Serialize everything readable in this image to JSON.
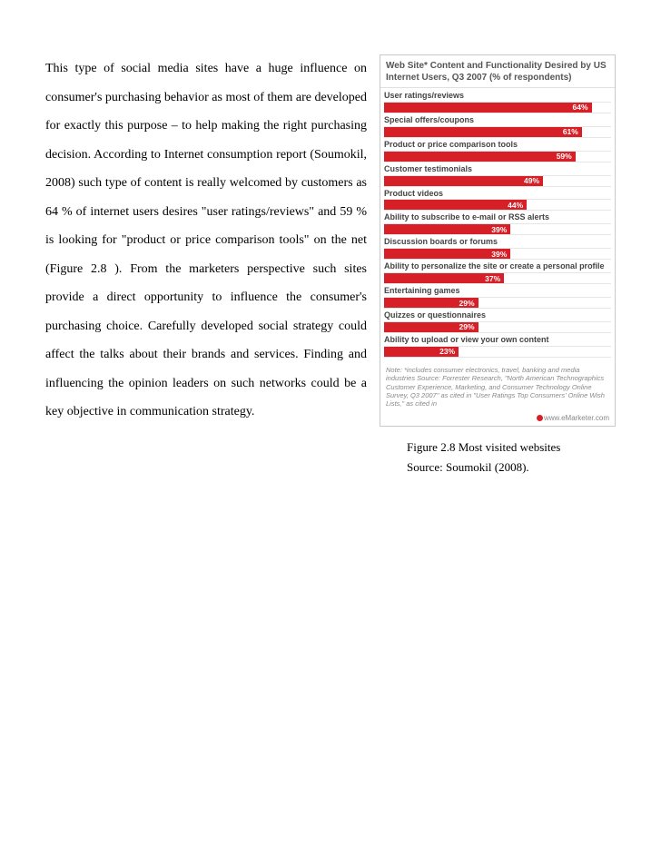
{
  "paragraph": "This type of social media sites have a huge influence on consumer's purchasing behavior as most of them are developed for exactly this purpose – to help making  the right purchasing decision. According to Internet consumption report (Soumokil, 2008) such type of content is really welcomed by customers as 64 % of internet users desires \"user ratings/reviews\" and 59 % is looking for \"product or price comparison tools\" on the net (Figure 2.8 ). From the marketers perspective such sites provide a direct opportunity to influence the consumer's purchasing choice. Carefully developed social strategy could affect the talks about their brands and services. Finding and influencing the opinion leaders on such networks could be a key objective in communication strategy.",
  "chart": {
    "type": "bar",
    "title": "Web Site* Content and Functionality Desired by US Internet Users, Q3 2007 (% of respondents)",
    "title_color": "#555555",
    "title_fontsize": 10,
    "label_color": "#444444",
    "label_fontsize": 9,
    "value_color": "#ffffff",
    "value_fontsize": 8.5,
    "bar_color": "#d61f26",
    "background_color": "#ffffff",
    "border_color": "#c9c9c9",
    "grid_color": "#e6e6e6",
    "max_value": 70,
    "items": [
      {
        "label": "User ratings/reviews",
        "value": 64,
        "display": "64%"
      },
      {
        "label": "Special offers/coupons",
        "value": 61,
        "display": "61%"
      },
      {
        "label": "Product or price comparison tools",
        "value": 59,
        "display": "59%"
      },
      {
        "label": "Customer testimonials",
        "value": 49,
        "display": "49%"
      },
      {
        "label": "Product videos",
        "value": 44,
        "display": "44%"
      },
      {
        "label": "Ability to subscribe to e-mail or RSS alerts",
        "value": 39,
        "display": "39%"
      },
      {
        "label": "Discussion boards or forums",
        "value": 39,
        "display": "39%"
      },
      {
        "label": "Ability to personalize the site or create a personal profile",
        "value": 37,
        "display": "37%"
      },
      {
        "label": "Entertaining games",
        "value": 29,
        "display": "29%"
      },
      {
        "label": "Quizzes or questionnaires",
        "value": 29,
        "display": "29%"
      },
      {
        "label": "Ability to upload or view your own content",
        "value": 23,
        "display": "23%"
      }
    ],
    "note": "Note: *includes consumer electronics, travel, banking and media industries Source: Forrester Research, \"North American Technographics Customer Experience, Marketing, and Consumer Technology Online Survey, Q3 2007\" as cited in \"User Ratings Top Consumers' Online Wish Lists,\" as cited in",
    "note_color": "#888888",
    "note_fontsize": 7.5,
    "footer_brand": "www.eMarketer.com",
    "footer_color": "#888888"
  },
  "caption_line1": "Figure 2.8 Most visited websites",
  "caption_line2": "Source: Soumokil (2008)."
}
